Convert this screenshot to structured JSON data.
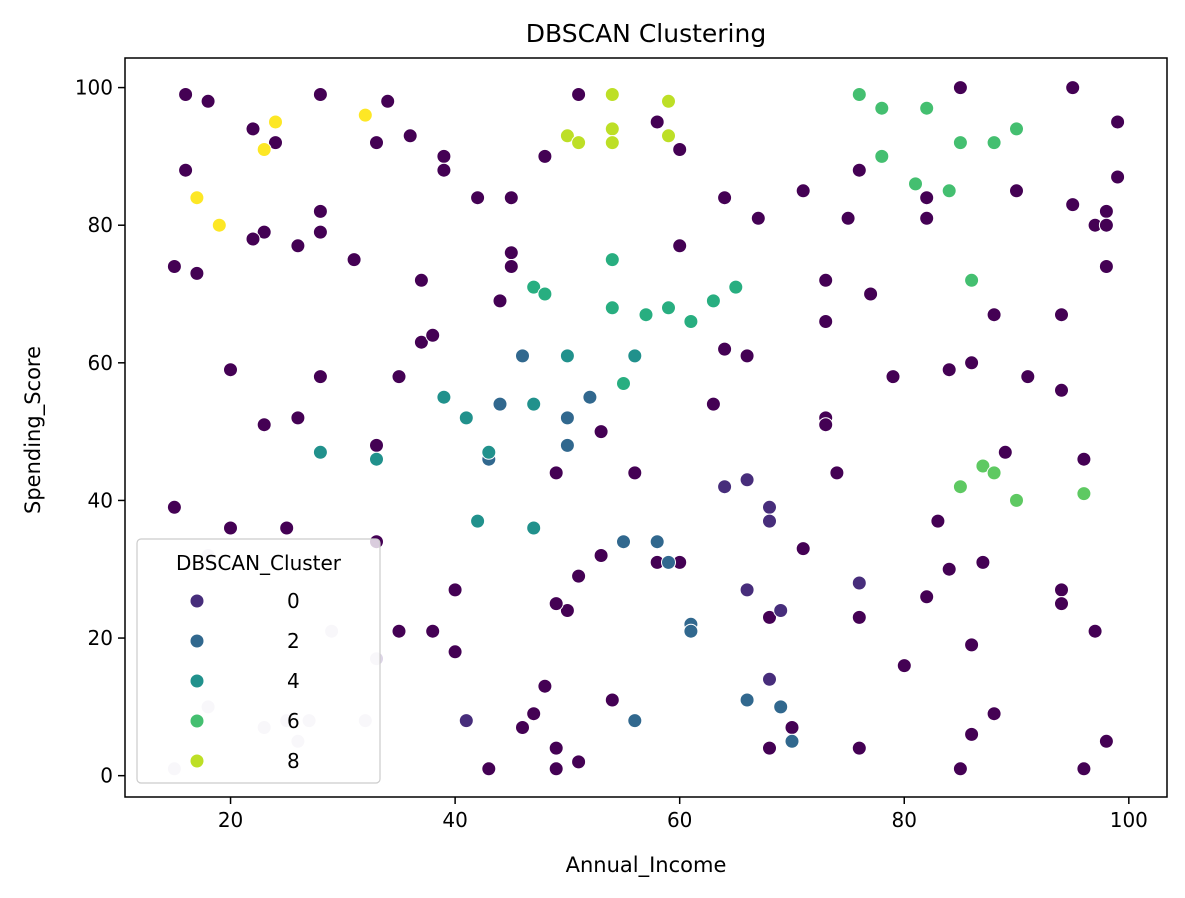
{
  "chart_data": {
    "type": "scatter",
    "title": "DBSCAN Clustering",
    "xlabel": "Annual_Income",
    "ylabel": "Spending_Score",
    "xlim": [
      10.6,
      103.4
    ],
    "ylim": [
      -3.1,
      104.3
    ],
    "xticks": [
      20,
      40,
      60,
      80,
      100
    ],
    "yticks": [
      0,
      20,
      40,
      60,
      80,
      100
    ],
    "grid": false,
    "legend": {
      "title": "DBSCAN_Cluster",
      "placement": "lower-left",
      "entries": [
        {
          "label": "0",
          "color": "#472d7b"
        },
        {
          "label": "2",
          "color": "#31688e"
        },
        {
          "label": "4",
          "color": "#21918c"
        },
        {
          "label": "6",
          "color": "#44bf70"
        },
        {
          "label": "8",
          "color": "#bddf26"
        }
      ]
    },
    "cluster_colors": {
      "-1": "#440154",
      "0": "#472d7b",
      "2": "#31688e",
      "4": "#21918c",
      "5": "#28ae80",
      "6": "#44bf70",
      "7": "#5ec962",
      "8": "#bddf26",
      "9": "#fde725",
      "faint": "#dcd4e6"
    },
    "series": [
      {
        "cluster": "-1",
        "points": [
          [
            16,
            99
          ],
          [
            18,
            98
          ],
          [
            28,
            99
          ],
          [
            34,
            98
          ],
          [
            22,
            94
          ],
          [
            24,
            92
          ],
          [
            33,
            92
          ],
          [
            36,
            93
          ],
          [
            39,
            90
          ],
          [
            39,
            88
          ],
          [
            16,
            88
          ],
          [
            42,
            84
          ],
          [
            45,
            84
          ],
          [
            28,
            82
          ],
          [
            23,
            79
          ],
          [
            28,
            79
          ],
          [
            22,
            78
          ],
          [
            26,
            77
          ],
          [
            15,
            74
          ],
          [
            17,
            73
          ],
          [
            31,
            75
          ],
          [
            37,
            72
          ],
          [
            45,
            76
          ],
          [
            45,
            74
          ],
          [
            44,
            69
          ],
          [
            37,
            63
          ],
          [
            38,
            64
          ],
          [
            20,
            59
          ],
          [
            28,
            58
          ],
          [
            35,
            58
          ],
          [
            26,
            52
          ],
          [
            23,
            51
          ],
          [
            33,
            48
          ],
          [
            15,
            39
          ],
          [
            20,
            36
          ],
          [
            25,
            36
          ],
          [
            33,
            34
          ],
          [
            40,
            27
          ],
          [
            35,
            21
          ],
          [
            38,
            21
          ],
          [
            40,
            18
          ],
          [
            48,
            13
          ],
          [
            47,
            9
          ],
          [
            46,
            7
          ],
          [
            43,
            1
          ],
          [
            49,
            4
          ],
          [
            49,
            1
          ],
          [
            51,
            2
          ],
          [
            50,
            24
          ],
          [
            49,
            25
          ],
          [
            51,
            29
          ],
          [
            53,
            32
          ],
          [
            53,
            50
          ],
          [
            49,
            44
          ],
          [
            56,
            44
          ],
          [
            54,
            11
          ],
          [
            58,
            31
          ],
          [
            60,
            31
          ],
          [
            48,
            90
          ],
          [
            51,
            99
          ],
          [
            58,
            95
          ],
          [
            60,
            91
          ],
          [
            60,
            77
          ],
          [
            64,
            84
          ],
          [
            67,
            81
          ],
          [
            71,
            85
          ],
          [
            75,
            81
          ],
          [
            76,
            88
          ],
          [
            64,
            62
          ],
          [
            66,
            61
          ],
          [
            63,
            54
          ],
          [
            73,
            72
          ],
          [
            77,
            70
          ],
          [
            73,
            66
          ],
          [
            79,
            58
          ],
          [
            73,
            52
          ],
          [
            73,
            51
          ],
          [
            74,
            44
          ],
          [
            71,
            33
          ],
          [
            68,
            23
          ],
          [
            70,
            7
          ],
          [
            68,
            4
          ],
          [
            76,
            4
          ],
          [
            76,
            23
          ],
          [
            80,
            16
          ],
          [
            82,
            26
          ],
          [
            84,
            30
          ],
          [
            83,
            37
          ],
          [
            87,
            31
          ],
          [
            89,
            47
          ],
          [
            86,
            19
          ],
          [
            86,
            6
          ],
          [
            85,
            1
          ],
          [
            88,
            9
          ],
          [
            85,
            100
          ],
          [
            95,
            100
          ],
          [
            99,
            95
          ],
          [
            82,
            84
          ],
          [
            82,
            81
          ],
          [
            90,
            85
          ],
          [
            95,
            83
          ],
          [
            97,
            80
          ],
          [
            98,
            82
          ],
          [
            98,
            80
          ],
          [
            99,
            87
          ],
          [
            98,
            74
          ],
          [
            94,
            67
          ],
          [
            88,
            67
          ],
          [
            84,
            59
          ],
          [
            86,
            60
          ],
          [
            91,
            58
          ],
          [
            94,
            56
          ],
          [
            96,
            46
          ],
          [
            94,
            27
          ],
          [
            94,
            25
          ],
          [
            97,
            21
          ],
          [
            98,
            5
          ],
          [
            96,
            1
          ]
        ]
      },
      {
        "cluster": "0",
        "points": [
          [
            64,
            42
          ],
          [
            66,
            43
          ],
          [
            68,
            39
          ],
          [
            68,
            37
          ],
          [
            66,
            27
          ],
          [
            69,
            24
          ],
          [
            68,
            14
          ],
          [
            76,
            28
          ],
          [
            41,
            8
          ]
        ]
      },
      {
        "cluster": "2",
        "points": [
          [
            55,
            34
          ],
          [
            58,
            34
          ],
          [
            59,
            31
          ],
          [
            61,
            22
          ],
          [
            61,
            21
          ],
          [
            56,
            8
          ],
          [
            66,
            11
          ],
          [
            69,
            10
          ],
          [
            70,
            5
          ],
          [
            46,
            61
          ],
          [
            52,
            55
          ],
          [
            44,
            54
          ],
          [
            50,
            52
          ],
          [
            43,
            46
          ],
          [
            50,
            48
          ]
        ]
      },
      {
        "cluster": "4",
        "points": [
          [
            39,
            55
          ],
          [
            41,
            52
          ],
          [
            43,
            47
          ],
          [
            33,
            46
          ],
          [
            28,
            47
          ],
          [
            42,
            37
          ],
          [
            47,
            36
          ],
          [
            56,
            61
          ],
          [
            50,
            61
          ],
          [
            47,
            54
          ]
        ]
      },
      {
        "cluster": "5",
        "points": [
          [
            47,
            71
          ],
          [
            48,
            70
          ],
          [
            54,
            75
          ],
          [
            54,
            68
          ],
          [
            57,
            67
          ],
          [
            59,
            68
          ],
          [
            61,
            66
          ],
          [
            63,
            69
          ],
          [
            65,
            71
          ],
          [
            55,
            57
          ]
        ]
      },
      {
        "cluster": "6",
        "points": [
          [
            76,
            99
          ],
          [
            78,
            97
          ],
          [
            82,
            97
          ],
          [
            78,
            90
          ],
          [
            85,
            92
          ],
          [
            88,
            92
          ],
          [
            90,
            94
          ],
          [
            81,
            86
          ],
          [
            84,
            85
          ],
          [
            86,
            72
          ]
        ]
      },
      {
        "cluster": "7",
        "points": [
          [
            85,
            42
          ],
          [
            87,
            45
          ],
          [
            88,
            44
          ],
          [
            90,
            40
          ],
          [
            96,
            41
          ]
        ]
      },
      {
        "cluster": "8",
        "points": [
          [
            50,
            93
          ],
          [
            51,
            92
          ],
          [
            54,
            99
          ],
          [
            54,
            94
          ],
          [
            54,
            92
          ],
          [
            59,
            98
          ],
          [
            59,
            93
          ]
        ]
      },
      {
        "cluster": "9",
        "points": [
          [
            24,
            95
          ],
          [
            23,
            91
          ],
          [
            32,
            96
          ],
          [
            17,
            84
          ],
          [
            19,
            80
          ]
        ]
      },
      {
        "cluster": "faint",
        "points": [
          [
            18,
            32
          ],
          [
            29,
            21
          ],
          [
            33,
            17
          ],
          [
            18,
            10
          ],
          [
            25,
            8
          ],
          [
            27,
            8
          ],
          [
            32,
            8
          ],
          [
            23,
            7
          ],
          [
            26,
            5
          ],
          [
            15,
            1
          ]
        ]
      }
    ]
  }
}
